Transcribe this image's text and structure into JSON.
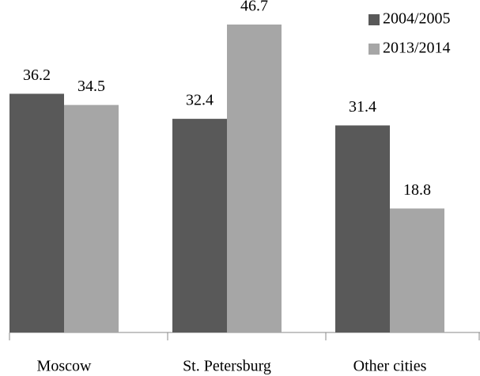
{
  "chart_data": {
    "type": "bar",
    "categories": [
      "Moscow",
      "St. Petersburg",
      "Other cities"
    ],
    "series": [
      {
        "name": "2004/2005",
        "color": "#595959",
        "values": [
          36.2,
          32.4,
          31.4
        ]
      },
      {
        "name": "2013/2014",
        "color": "#a6a6a6",
        "values": [
          34.5,
          46.7,
          18.8
        ]
      }
    ],
    "legend": "top-right"
  }
}
